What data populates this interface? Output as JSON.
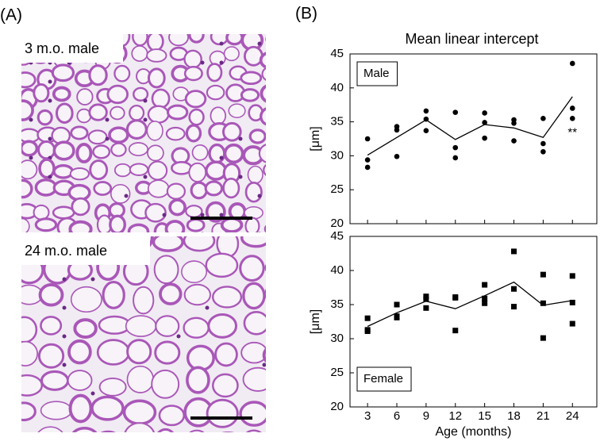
{
  "panels": [
    {
      "label": "(A)",
      "images": [
        {
          "caption": "3 m.o. male"
        },
        {
          "caption": "24 m.o. male"
        }
      ]
    },
    {
      "label": "(B)"
    }
  ],
  "chart_data": [
    {
      "type": "scatter",
      "title": "Mean linear intercept",
      "ylabel": "[μm]",
      "xlim": [
        1.2,
        26.5
      ],
      "ylim": [
        20,
        45
      ],
      "xticks": [
        3,
        6,
        9,
        12,
        15,
        18,
        21,
        24
      ],
      "yticks": [
        20,
        25,
        30,
        35,
        40,
        45
      ],
      "legend": "upper left",
      "annotation": "**",
      "series": [
        {
          "name": "Male",
          "marker": "circle",
          "color": "#000000",
          "x": [
            3,
            3,
            3,
            6,
            6,
            6,
            9,
            9,
            9,
            12,
            12,
            12,
            15,
            15,
            15,
            18,
            18,
            18,
            21,
            21,
            21,
            24,
            24,
            24
          ],
          "values": [
            32.5,
            29.4,
            28.3,
            34.3,
            33.8,
            29.9,
            36.6,
            35.4,
            33.7,
            36.4,
            31.2,
            29.7,
            36.3,
            34.9,
            32.6,
            35.3,
            34.8,
            32.2,
            35.5,
            31.8,
            30.6,
            43.6,
            37.0,
            35.5
          ]
        }
      ],
      "mean": {
        "x": [
          3,
          6,
          9,
          12,
          15,
          18,
          21,
          24
        ],
        "values": [
          30.1,
          32.7,
          35.3,
          32.4,
          34.6,
          34.1,
          32.7,
          38.7
        ]
      }
    },
    {
      "type": "scatter",
      "xlabel": "Age (months)",
      "ylabel": "[μm]",
      "xlim": [
        1.2,
        26.5
      ],
      "ylim": [
        20,
        45
      ],
      "xticks": [
        3,
        6,
        9,
        12,
        15,
        18,
        21,
        24
      ],
      "yticks": [
        20,
        25,
        30,
        35,
        40,
        45
      ],
      "legend": "lower left",
      "series": [
        {
          "name": "Female",
          "marker": "square",
          "color": "#000000",
          "x": [
            3,
            3,
            3,
            6,
            6,
            6,
            9,
            9,
            9,
            12,
            12,
            12,
            15,
            15,
            15,
            18,
            18,
            18,
            21,
            21,
            21,
            24,
            24,
            24
          ],
          "values": [
            33.0,
            31.3,
            31.1,
            35.0,
            33.3,
            33.1,
            36.2,
            35.8,
            34.5,
            36.1,
            36.0,
            31.2,
            37.9,
            35.9,
            35.2,
            42.8,
            37.3,
            34.7,
            39.4,
            35.2,
            30.1,
            39.2,
            35.3,
            32.2
          ]
        }
      ],
      "mean": {
        "x": [
          3,
          6,
          9,
          12,
          15,
          18,
          21,
          24
        ],
        "values": [
          31.8,
          33.8,
          35.5,
          34.4,
          36.3,
          38.3,
          34.9,
          35.6
        ]
      }
    }
  ]
}
